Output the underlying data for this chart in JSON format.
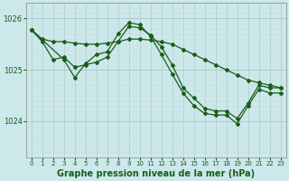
{
  "title": "Graphe pression niveau de la mer (hPa)",
  "bg_color": "#cce8ea",
  "line_color": "#1a5e1a",
  "marker_color": "#1a5e1a",
  "grid_color_v": "#aacccc",
  "grid_color_h": "#c8dede",
  "ylim": [
    1023.3,
    1026.3
  ],
  "yticks": [
    1024,
    1025,
    1026
  ],
  "ytick_fontsize": 6,
  "xtick_fontsize": 5,
  "xlabel_fontsize": 7,
  "series1_x": [
    0,
    1,
    2,
    3,
    4,
    5,
    6,
    7,
    8,
    9,
    10,
    11,
    12,
    13,
    14,
    15,
    16,
    17,
    18,
    19,
    20,
    21,
    22,
    23
  ],
  "series1_y": [
    1025.78,
    1025.6,
    1025.55,
    1025.55,
    1025.52,
    1025.5,
    1025.5,
    1025.52,
    1025.55,
    1025.6,
    1025.6,
    1025.58,
    1025.55,
    1025.5,
    1025.4,
    1025.3,
    1025.2,
    1025.1,
    1025.0,
    1024.9,
    1024.8,
    1024.75,
    1024.7,
    1024.65
  ],
  "series2_x": [
    0,
    1,
    2,
    3,
    4,
    5,
    6,
    7,
    8,
    9,
    10,
    11,
    12,
    13,
    14,
    15,
    16,
    17,
    18,
    19,
    20,
    21,
    22,
    23
  ],
  "series2_y": [
    1025.78,
    1025.55,
    1025.2,
    1025.25,
    1025.05,
    1025.1,
    1025.15,
    1025.25,
    1025.55,
    1025.85,
    1025.82,
    1025.68,
    1025.45,
    1025.1,
    1024.65,
    1024.45,
    1024.25,
    1024.2,
    1024.2,
    1024.05,
    1024.35,
    1024.7,
    1024.65,
    1024.65
  ],
  "series3_x": [
    0,
    3,
    4,
    5,
    6,
    7,
    8,
    9,
    10,
    11,
    12,
    13,
    14,
    15,
    16,
    17,
    18,
    19,
    20,
    21,
    22,
    23
  ],
  "series3_y": [
    1025.78,
    1025.2,
    1024.85,
    1025.12,
    1025.3,
    1025.35,
    1025.7,
    1025.92,
    1025.88,
    1025.65,
    1025.3,
    1024.92,
    1024.55,
    1024.3,
    1024.15,
    1024.12,
    1024.12,
    1023.95,
    1024.3,
    1024.62,
    1024.55,
    1024.55
  ]
}
